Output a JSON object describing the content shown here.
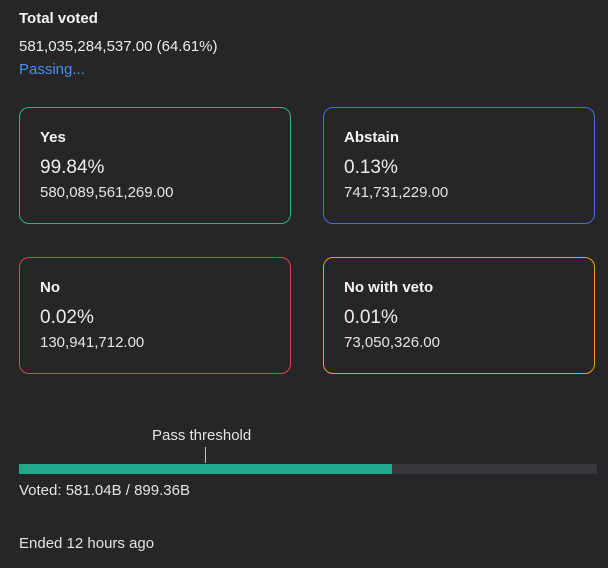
{
  "total": {
    "label": "Total voted",
    "value": "581,035,284,537.00 (64.61%)",
    "status": "Passing...",
    "status_color": "#4a8cf0"
  },
  "cards": {
    "yes": {
      "title": "Yes",
      "percent": "99.84%",
      "amount": "580,089,561,269.00",
      "color": "#2fb383"
    },
    "abstain": {
      "title": "Abstain",
      "percent": "0.13%",
      "amount": "741,731,229.00",
      "color": "#3f6fd8"
    },
    "no": {
      "title": "No",
      "percent": "0.02%",
      "amount": "130,941,712.00",
      "color": "#d94848"
    },
    "veto": {
      "title": "No with veto",
      "percent": "0.01%",
      "amount": "73,050,326.00",
      "color": "#e6a024"
    }
  },
  "progress": {
    "threshold_label": "Pass threshold",
    "voted_label": "Voted: 581.04B / 899.36B",
    "voted_fraction": 0.6461,
    "fill_color": "#22a98c"
  },
  "footer": {
    "ended": "Ended 12 hours ago"
  }
}
